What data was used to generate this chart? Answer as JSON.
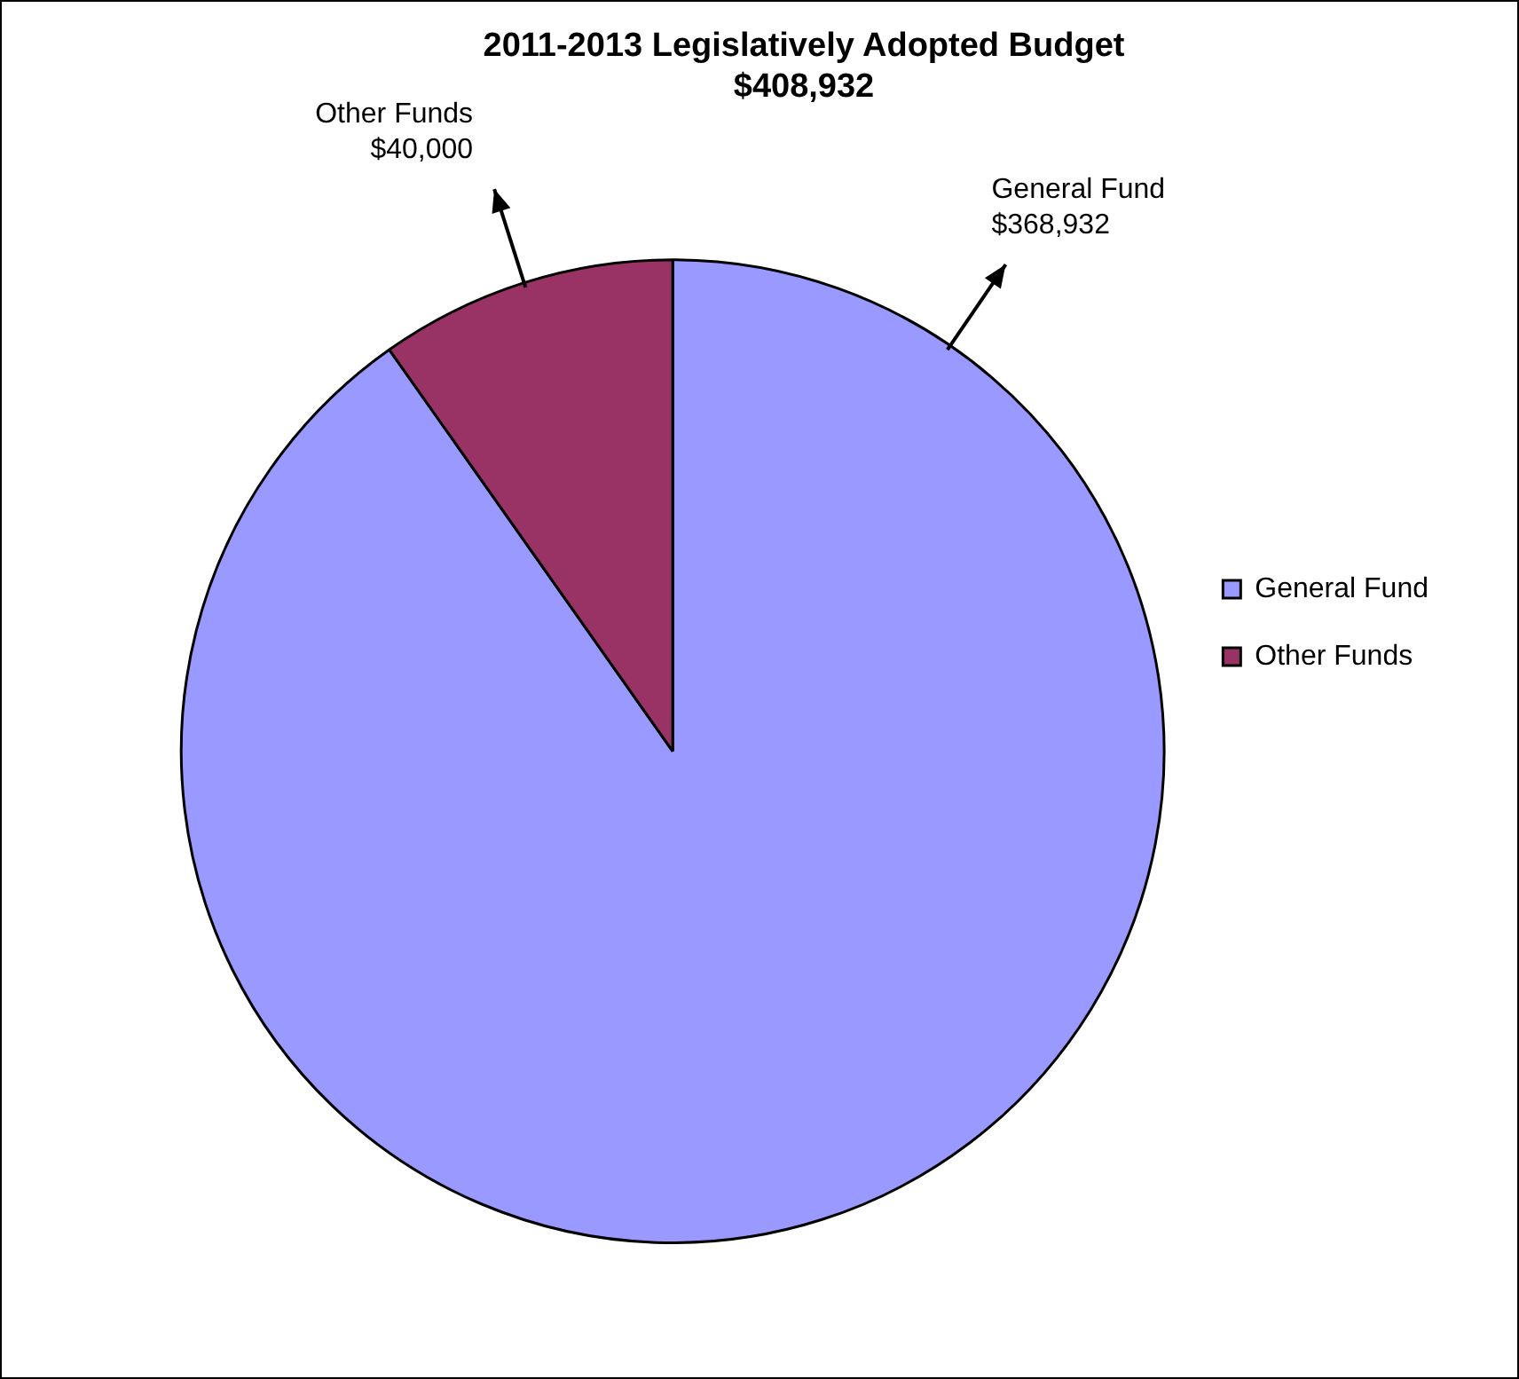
{
  "chart_data": {
    "type": "pie",
    "title": "2011-2013 Legislatively Adopted Budget",
    "subtitle": "$408,932",
    "categories": [
      "General Fund",
      "Other Funds"
    ],
    "values": [
      368932,
      40000
    ],
    "value_labels": [
      "$368,932",
      "$40,000"
    ],
    "colors": [
      "#9999ff",
      "#993366"
    ],
    "legend": "right"
  }
}
